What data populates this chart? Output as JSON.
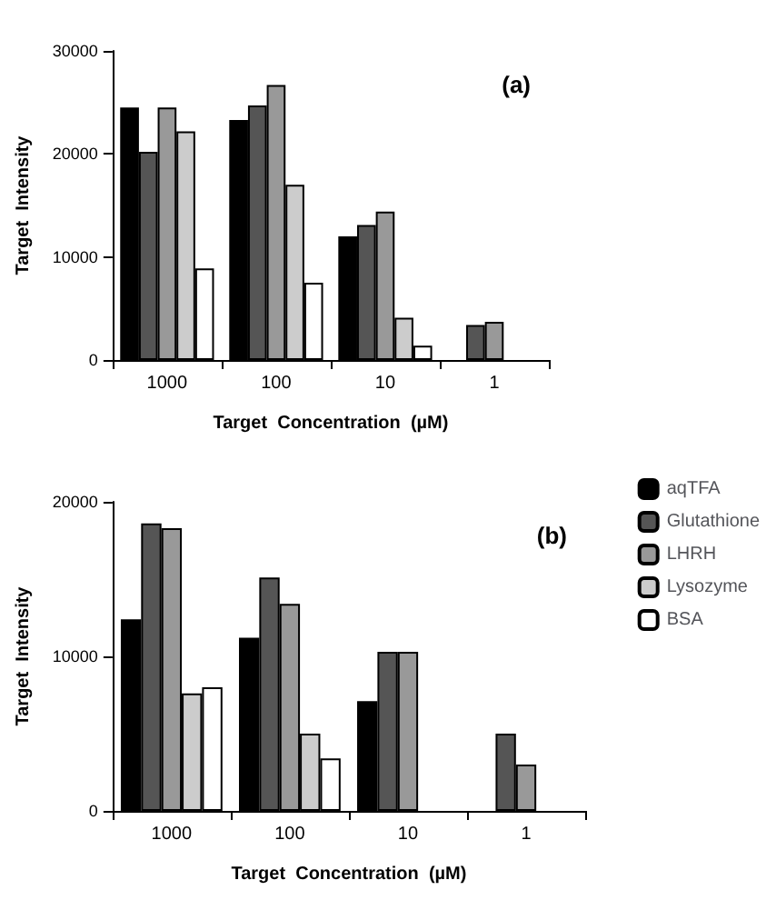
{
  "chart_data": [
    {
      "type": "bar",
      "xlabel": "Target  Concentration  (µM)",
      "ylabel": "Target  Intensity",
      "annotations": [
        "(a)"
      ],
      "categories": [
        "1000",
        "100",
        "10",
        "1"
      ],
      "ylim": [
        0,
        30000
      ],
      "yticks": [
        0,
        10000,
        20000,
        30000
      ],
      "grid": false,
      "legend": false,
      "series": [
        {
          "color": "#000000",
          "values": [
            24500,
            23300,
            12000,
            null
          ]
        },
        {
          "color": "#555555",
          "values": [
            20200,
            24700,
            13100,
            3400
          ]
        },
        {
          "color": "#999999",
          "values": [
            24500,
            26700,
            14400,
            3700
          ]
        },
        {
          "color": "#cccccc",
          "values": [
            22200,
            17000,
            4100,
            null
          ]
        },
        {
          "color": "#ffffff",
          "values": [
            8900,
            7500,
            1400,
            null
          ]
        }
      ]
    },
    {
      "type": "bar",
      "xlabel": "Target  Concentration  (µM)",
      "ylabel": "Target  Intensity",
      "annotations": [
        "(b)"
      ],
      "categories": [
        "1000",
        "100",
        "10",
        "1"
      ],
      "ylim": [
        0,
        20000
      ],
      "yticks": [
        0,
        10000,
        20000
      ],
      "grid": false,
      "legend": "right",
      "series": [
        {
          "name": "aqTFA",
          "color": "#000000",
          "values": [
            12400,
            11200,
            7100,
            null
          ]
        },
        {
          "name": "Glutathione",
          "color": "#555555",
          "values": [
            18600,
            15100,
            10300,
            5000
          ]
        },
        {
          "name": "LHRH",
          "color": "#999999",
          "values": [
            18300,
            13400,
            10300,
            3000
          ]
        },
        {
          "name": "Lysozyme",
          "color": "#cccccc",
          "values": [
            7600,
            5000,
            null,
            null
          ]
        },
        {
          "name": "BSA",
          "color": "#ffffff",
          "values": [
            8000,
            3400,
            null,
            null
          ]
        }
      ]
    }
  ]
}
